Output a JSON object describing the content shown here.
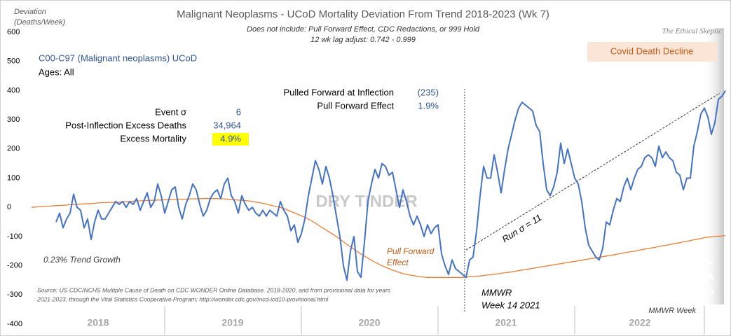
{
  "chart_data": {
    "type": "line",
    "title": "Malignant Neoplasms - UCoD Mortality Deviation From Trend  2018-2023 (Wk 7)",
    "subtitle": [
      "Does not include: Pull Forward Effect,  CDC Redactions, or 999 Hold",
      "12 wk lag adjust: 0.742 - 0.999"
    ],
    "y_label": [
      "Deviation",
      "(Deaths/Week)"
    ],
    "brand": "The Ethical Skeptic",
    "ylim": [
      -400,
      600
    ],
    "yticks": [
      600,
      500,
      400,
      300,
      200,
      100,
      0,
      -100,
      -200,
      -300,
      -400
    ],
    "year_labels": [
      "2018",
      "2019",
      "2020",
      "2021",
      "2022"
    ],
    "ages": "Ages: All",
    "stats_right": [
      {
        "label": "Pulled Forward at Inflection",
        "value": "(235)"
      },
      {
        "label": "Pull Forward Effect",
        "value": "1.9%"
      }
    ],
    "stats_left": [
      {
        "label": "Event σ",
        "value": "6"
      },
      {
        "label": "Post-Inflection Excess Deaths",
        "value": "34,964"
      },
      {
        "label": "Excess Mortality",
        "value": "4.9%"
      }
    ],
    "annotations": {
      "covid": "Covid Death Decline",
      "dry_tinder": "DRY TINDER",
      "pull_forward": [
        "Pull Forward",
        "Effect"
      ],
      "run": "Run σ = 11",
      "inflection": [
        "MMWR",
        "Week 14 2021"
      ],
      "x_label": "MMWR Week",
      "lag": [
        "L",
        "A",
        "G"
      ],
      "source": [
        "Source: US CDC/NCHS Multiple Cause of Death on CDC WONDER Online Database, 2018-2020, and from provisional data for years",
        "2021-2023, through the Vital Statistics Cooperative Program; http://wonder.cdc.gov/mcd-icd10-provisional.html"
      ]
    },
    "series": [
      {
        "name": "C00-C97 (Malignant neoplasms) UCoD",
        "color": "#4472c4",
        "values": [
          null,
          null,
          null,
          null,
          null,
          null,
          null,
          -50,
          -20,
          -70,
          -40,
          -20,
          45,
          0,
          -10,
          -70,
          -40,
          -110,
          -50,
          -10,
          -40,
          -40,
          -20,
          0,
          20,
          10,
          20,
          0,
          20,
          10,
          30,
          -10,
          20,
          50,
          0,
          20,
          80,
          40,
          -20,
          20,
          60,
          70,
          0,
          -40,
          10,
          40,
          80,
          60,
          10,
          -30,
          -10,
          30,
          50,
          60,
          30,
          80,
          100,
          40,
          20,
          -20,
          40,
          10,
          -10,
          0,
          -20,
          -30,
          -10,
          -30,
          -10,
          -20,
          -30,
          20,
          -10,
          -30,
          -80,
          -60,
          -120,
          -90,
          -40,
          40,
          100,
          160,
          130,
          80,
          140,
          100,
          40,
          -30,
          -100,
          -200,
          -250,
          -150,
          -100,
          -220,
          -240,
          -120,
          20,
          80,
          130,
          100,
          150,
          140,
          110,
          120,
          60,
          0,
          60,
          20,
          -30,
          -60,
          -30,
          -60,
          -100,
          -60,
          -90,
          -70,
          -60,
          -160,
          -200,
          -230,
          -180,
          -210,
          -220,
          -230,
          -240,
          -180,
          -170,
          -80,
          40,
          140,
          100,
          100,
          180,
          120,
          50,
          130,
          200,
          250,
          300,
          340,
          360,
          350,
          340,
          330,
          280,
          260,
          150,
          60,
          40,
          70,
          120,
          220,
          150,
          200,
          150,
          100,
          80,
          20,
          -70,
          -130,
          -150,
          -170,
          -180,
          -140,
          -50,
          -60,
          -10,
          30,
          20,
          70,
          100,
          60,
          100,
          130,
          140,
          170,
          180,
          170,
          140,
          210,
          170,
          190,
          170,
          160,
          120,
          110,
          60,
          100,
          100,
          210,
          260,
          320,
          340,
          310,
          250,
          290,
          370,
          380,
          400
        ]
      },
      {
        "name": "0.23% Trend Growth",
        "color": "#ed7d31",
        "values": [
          0,
          1,
          2,
          3,
          3,
          4,
          5,
          6,
          6,
          7,
          8,
          9,
          9,
          10,
          11,
          12,
          12,
          13,
          14,
          15,
          16,
          16,
          17,
          17,
          18,
          18,
          19,
          19,
          20,
          21,
          22,
          22,
          23,
          23,
          24,
          24,
          25,
          25,
          26,
          26,
          27,
          27,
          28,
          28,
          28,
          29,
          29,
          29,
          30,
          30,
          30,
          30,
          30,
          30,
          29,
          29,
          28,
          27,
          26,
          25,
          24,
          23,
          22,
          20,
          18,
          16,
          14,
          11,
          8,
          5,
          3,
          0,
          -4,
          -9,
          -14,
          -19,
          -24,
          -29,
          -34,
          -40,
          -47,
          -54,
          -62,
          -70,
          -77,
          -85,
          -92,
          -100,
          -109,
          -118,
          -127,
          -135,
          -143,
          -152,
          -160,
          -167,
          -174,
          -181,
          -188,
          -194,
          -200,
          -205,
          -210,
          -215,
          -219,
          -223,
          -227,
          -230,
          -232,
          -234,
          -236,
          -238,
          -239,
          -240,
          -240,
          -240,
          -240,
          -240,
          -240,
          -240,
          -240,
          -240,
          -240,
          -240,
          -239,
          -238,
          -237,
          -236,
          -235,
          -234,
          -232,
          -231,
          -229,
          -228,
          -226,
          -224,
          -223,
          -221,
          -219,
          -217,
          -215,
          -213,
          -211,
          -209,
          -207,
          -205,
          -203,
          -201,
          -199,
          -197,
          -195,
          -193,
          -191,
          -189,
          -187,
          -185,
          -183,
          -181,
          -179,
          -177,
          -175,
          -173,
          -171,
          -169,
          -167,
          -165,
          -163,
          -161,
          -158,
          -156,
          -154,
          -152,
          -150,
          -148,
          -145,
          -143,
          -141,
          -139,
          -137,
          -134,
          -132,
          -130,
          -128,
          -125,
          -123,
          -121,
          -118,
          -116,
          -114,
          -111,
          -109,
          -107,
          -104,
          -102,
          -101,
          -100,
          -99,
          -98,
          -97
        ]
      }
    ]
  }
}
